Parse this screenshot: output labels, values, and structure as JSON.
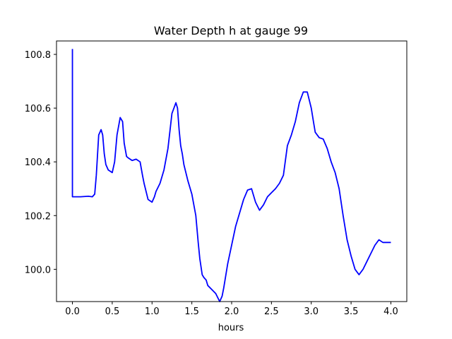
{
  "chart_data": {
    "type": "line",
    "title": "Water Depth h at gauge 99",
    "xlabel": "hours",
    "ylabel": "",
    "xlim": [
      -0.2,
      4.2
    ],
    "ylim": [
      99.88,
      100.85
    ],
    "xticks": [
      0.0,
      0.5,
      1.0,
      1.5,
      2.0,
      2.5,
      3.0,
      3.5,
      4.0
    ],
    "xtick_labels": [
      "0.0",
      "0.5",
      "1.0",
      "1.5",
      "2.0",
      "2.5",
      "3.0",
      "3.5",
      "4.0"
    ],
    "yticks": [
      100.0,
      100.2,
      100.4,
      100.6,
      100.8
    ],
    "ytick_labels": [
      "100.0",
      "100.2",
      "100.4",
      "100.6",
      "100.8"
    ],
    "grid": false,
    "legend": "none",
    "line_color": "#0000ff",
    "series": [
      {
        "x": [
          0.0,
          0.0,
          0.0,
          0.05,
          0.1,
          0.15,
          0.2,
          0.25,
          0.28,
          0.3,
          0.33,
          0.36,
          0.38,
          0.4,
          0.42,
          0.45,
          0.5,
          0.53,
          0.56,
          0.6,
          0.63,
          0.65,
          0.68,
          0.7,
          0.75,
          0.8,
          0.85,
          0.88,
          0.9,
          0.95,
          1.0,
          1.03,
          1.05,
          1.1,
          1.15,
          1.2,
          1.25,
          1.3,
          1.32,
          1.34,
          1.36,
          1.38,
          1.4,
          1.45,
          1.5,
          1.55,
          1.58,
          1.6,
          1.63,
          1.65,
          1.68,
          1.7,
          1.75,
          1.8,
          1.85,
          1.88,
          1.9,
          1.95,
          2.0,
          2.05,
          2.1,
          2.15,
          2.2,
          2.25,
          2.28,
          2.3,
          2.35,
          2.4,
          2.45,
          2.5,
          2.55,
          2.6,
          2.65,
          2.7,
          2.75,
          2.8,
          2.85,
          2.9,
          2.95,
          3.0,
          3.03,
          3.05,
          3.1,
          3.15,
          3.2,
          3.25,
          3.3,
          3.35,
          3.4,
          3.45,
          3.5,
          3.55,
          3.6,
          3.65,
          3.7,
          3.75,
          3.8,
          3.85,
          3.9,
          3.95,
          4.0
        ],
        "y": [
          100.82,
          100.5,
          100.27,
          100.27,
          100.27,
          100.271,
          100.272,
          100.27,
          100.28,
          100.35,
          100.5,
          100.52,
          100.5,
          100.43,
          100.39,
          100.37,
          100.36,
          100.4,
          100.5,
          100.565,
          100.55,
          100.47,
          100.42,
          100.415,
          100.405,
          100.41,
          100.4,
          100.35,
          100.32,
          100.26,
          100.25,
          100.27,
          100.29,
          100.32,
          100.37,
          100.45,
          100.58,
          100.62,
          100.6,
          100.52,
          100.46,
          100.43,
          100.39,
          100.33,
          100.28,
          100.2,
          100.1,
          100.04,
          99.98,
          99.97,
          99.96,
          99.94,
          99.925,
          99.91,
          99.88,
          99.9,
          99.93,
          100.02,
          100.09,
          100.16,
          100.21,
          100.26,
          100.295,
          100.3,
          100.27,
          100.25,
          100.22,
          100.24,
          100.27,
          100.285,
          100.3,
          100.32,
          100.35,
          100.46,
          100.5,
          100.55,
          100.62,
          100.66,
          100.66,
          100.6,
          100.545,
          100.51,
          100.49,
          100.485,
          100.45,
          100.4,
          100.36,
          100.3,
          100.2,
          100.11,
          100.05,
          100.0,
          99.98,
          100.0,
          100.03,
          100.06,
          100.09,
          100.11,
          100.1,
          100.1,
          100.1
        ]
      }
    ]
  }
}
